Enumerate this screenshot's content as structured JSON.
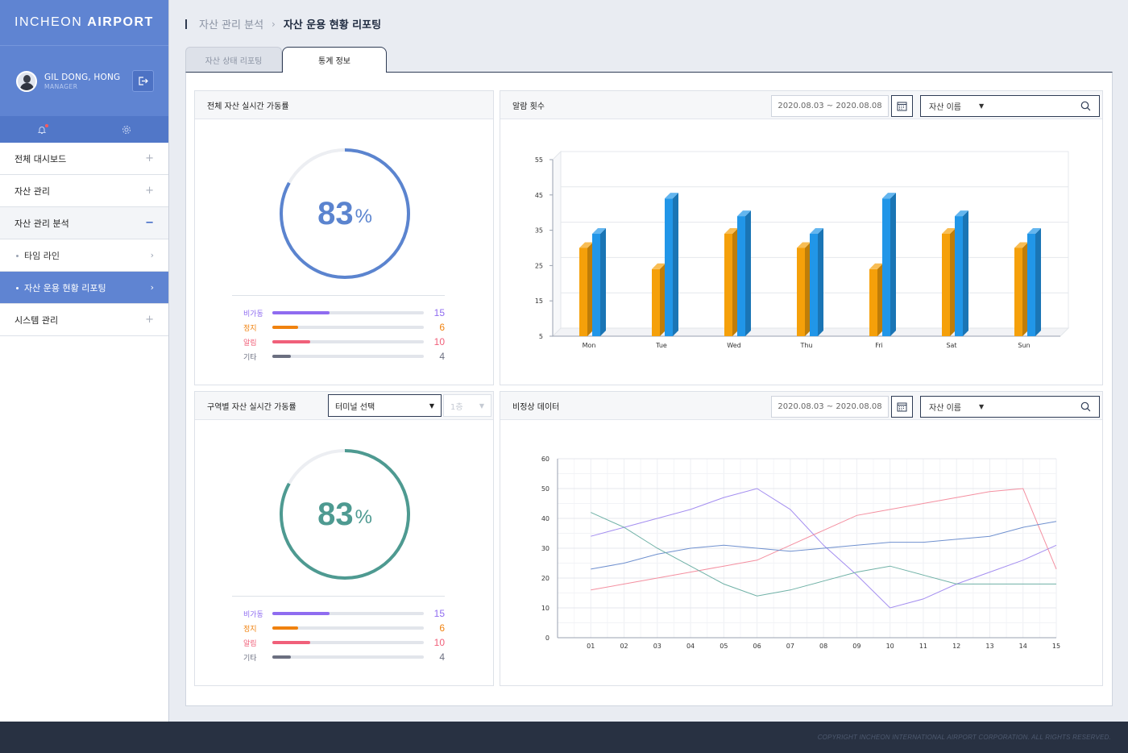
{
  "app": {
    "logo_light": "INCHEON",
    "logo_bold": "AIRPORT"
  },
  "user": {
    "name": "GIL DONG, HONG",
    "role": "MANAGER"
  },
  "nav": {
    "items": [
      {
        "label": "전체 대시보드",
        "sign": "+"
      },
      {
        "label": "자산 관리",
        "sign": "+"
      },
      {
        "label": "자산 관리 분석",
        "sign": "−"
      }
    ],
    "sub_items": [
      {
        "label": "타임 라인",
        "arrow": "›"
      },
      {
        "label": "자산 운용 현황 리포팅",
        "arrow": "›"
      }
    ],
    "last_item": {
      "label": "시스템 관리",
      "sign": "+"
    }
  },
  "breadcrumb": {
    "parent": "자산 관리 분석",
    "separator": "›",
    "current": "자산 운용 현황 리포팅"
  },
  "tabs": [
    {
      "label": "자산 상태 리포팅"
    },
    {
      "label": "통계 정보"
    }
  ],
  "panel_total": {
    "title": "전체 자산 실시간 가동률",
    "gauge": {
      "value": "83",
      "unit": "%",
      "percent": 83,
      "color": "#5b84cf"
    },
    "stats": [
      {
        "label": "비가동",
        "value": "15",
        "color": "#8f6cf0",
        "fill": 0.38
      },
      {
        "label": "정지",
        "value": "6",
        "color": "#f0820f",
        "fill": 0.17
      },
      {
        "label": "알림",
        "value": "10",
        "color": "#f0607a",
        "fill": 0.25
      },
      {
        "label": "기타",
        "value": "4",
        "color": "#6b6f80",
        "fill": 0.12
      }
    ]
  },
  "panel_zone": {
    "title": "구역별 자산 실시간 가동률",
    "terminal_select": "터미널 선택",
    "floor_select": "1층",
    "gauge": {
      "value": "83",
      "unit": "%",
      "percent": 83,
      "color": "#4e9a91"
    },
    "stats": [
      {
        "label": "비가동",
        "value": "15",
        "color": "#8f6cf0",
        "fill": 0.38
      },
      {
        "label": "정지",
        "value": "6",
        "color": "#f0820f",
        "fill": 0.17
      },
      {
        "label": "알림",
        "value": "10",
        "color": "#f0607a",
        "fill": 0.25
      },
      {
        "label": "기타",
        "value": "4",
        "color": "#6b6f80",
        "fill": 0.12
      }
    ]
  },
  "panel_alarm": {
    "title": "알람 횟수",
    "date_range": "2020.08.03 ~ 2020.08.08",
    "search_label": "자산 이름"
  },
  "panel_abnormal": {
    "title": "비정상 데이터",
    "date_range": "2020.08.03 ~ 2020.08.08",
    "search_label": "자산 이름"
  },
  "footer": {
    "copyright": "COPYRIGHT INCHEON INTERNATIONAL AIRPORT CORPORATION. ALL RIGHTS RESERVED."
  },
  "chart_data": [
    {
      "type": "bar",
      "categories": [
        "Mon",
        "Tue",
        "Wed",
        "Thu",
        "Fri",
        "Sat",
        "Sun"
      ],
      "series": [
        {
          "values": [
            30,
            24,
            34,
            30,
            24,
            34,
            30
          ],
          "color": "#f5a00a"
        },
        {
          "values": [
            34,
            44,
            39,
            34,
            44,
            39,
            34
          ],
          "color": "#2196e8"
        }
      ],
      "yticks": [
        5,
        15,
        25,
        35,
        45,
        55
      ],
      "ylim": [
        5,
        55
      ],
      "grid": true
    },
    {
      "type": "line",
      "x": [
        "01",
        "02",
        "03",
        "04",
        "05",
        "06",
        "07",
        "08",
        "09",
        "10",
        "11",
        "12",
        "13",
        "14",
        "15"
      ],
      "series": [
        {
          "color": "#a48ef0",
          "values": [
            34,
            37,
            40,
            43,
            47,
            50,
            43,
            31,
            21,
            10,
            13,
            18,
            22,
            26,
            31
          ]
        },
        {
          "color": "#f48fa0",
          "values": [
            16,
            18,
            20,
            22,
            24,
            26,
            31,
            36,
            41,
            43,
            45,
            47,
            49,
            50,
            23
          ]
        },
        {
          "color": "#6f90cf",
          "values": [
            23,
            25,
            28,
            30,
            31,
            30,
            29,
            30,
            31,
            32,
            32,
            33,
            34,
            37,
            39
          ]
        },
        {
          "color": "#6fb1a6",
          "values": [
            42,
            37,
            30,
            24,
            18,
            14,
            16,
            19,
            22,
            24,
            21,
            18,
            18,
            18,
            18
          ]
        }
      ],
      "yticks": [
        0,
        10,
        20,
        30,
        40,
        50,
        60
      ],
      "ylim": [
        0,
        60
      ],
      "grid": true
    }
  ]
}
